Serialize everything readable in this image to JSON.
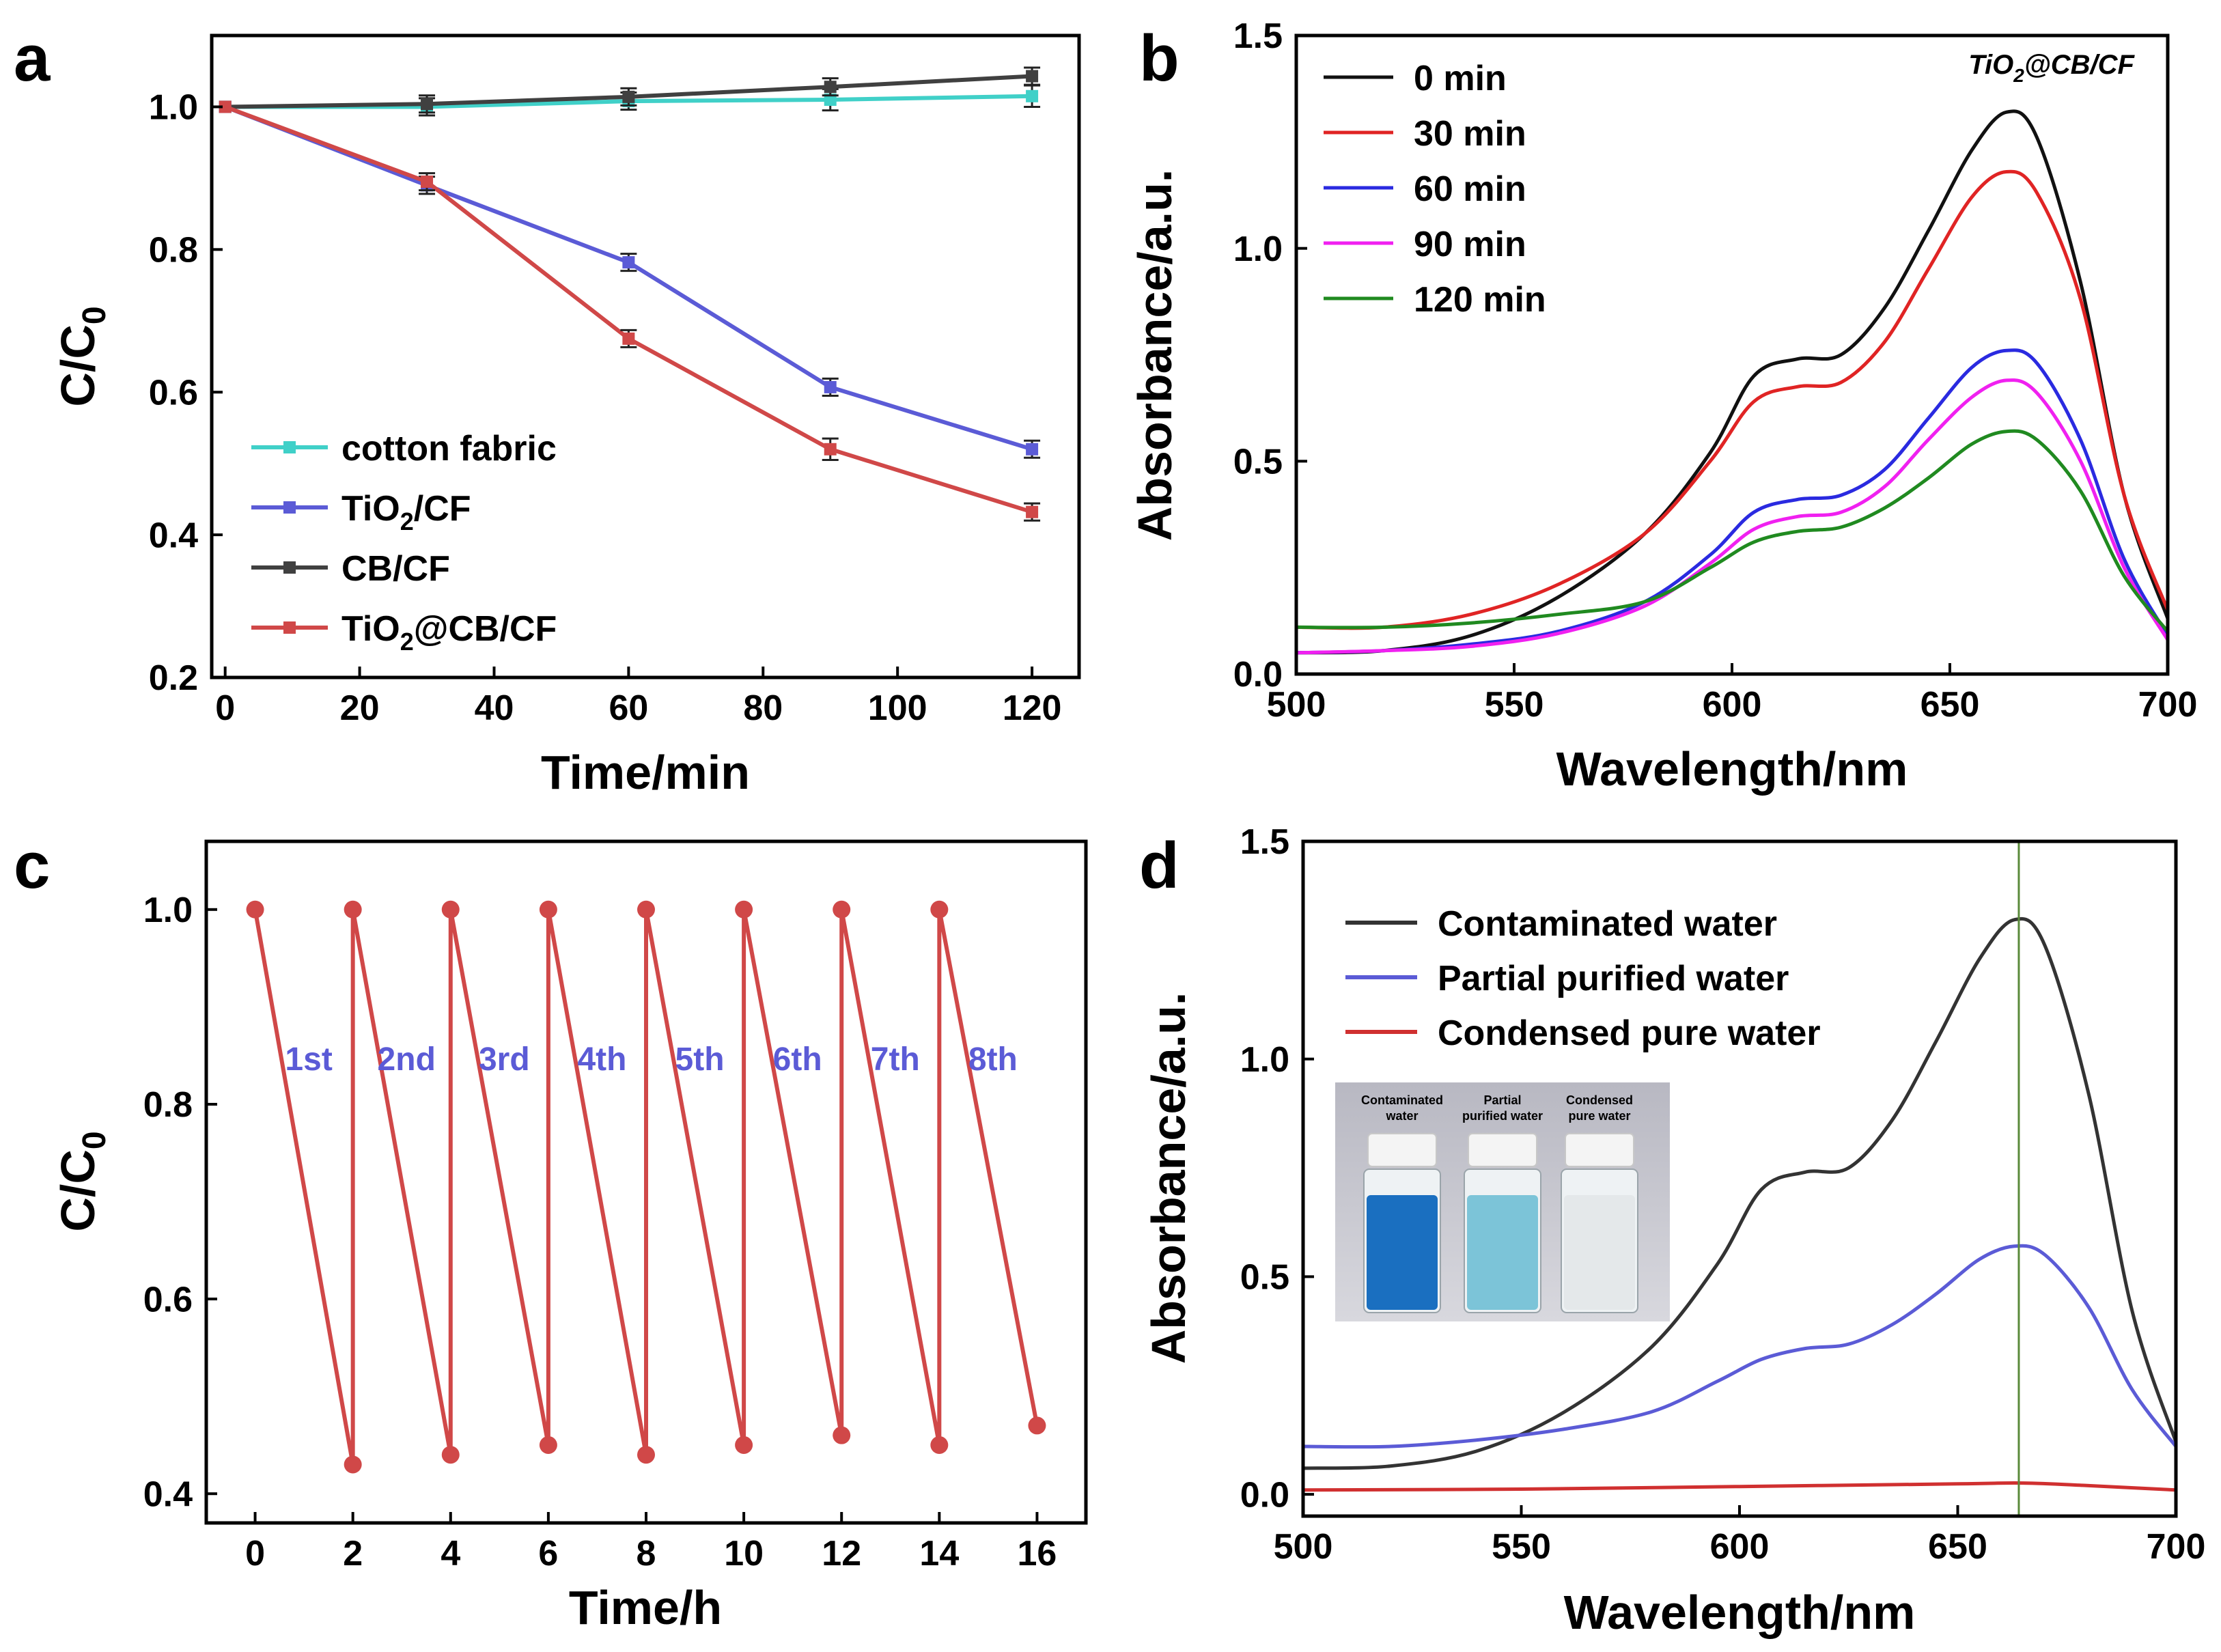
{
  "chart_data": [
    {
      "panel": "a",
      "type": "line",
      "xlabel": "Time/min",
      "ylabel": "C/C0",
      "ylabel_main": "C/C",
      "ylabel_sub": "0",
      "xlim": [
        -2,
        127
      ],
      "ylim": [
        0.2,
        1.1
      ],
      "xticks": [
        0,
        20,
        40,
        60,
        80,
        100,
        120
      ],
      "xtick_labels": [
        "0",
        "20",
        "40",
        "60",
        "80",
        "100",
        "120"
      ],
      "yticks": [
        0.2,
        0.4,
        0.6,
        0.8,
        1.0
      ],
      "ytick_labels": [
        "0.2",
        "0.4",
        "0.6",
        "0.8",
        "1.0"
      ],
      "legend_position": "bottom-left",
      "series": [
        {
          "name": "cotton fabric",
          "label_main": "cotton fabric",
          "label_sub": "",
          "label_rest": "",
          "color": "#40d0c8",
          "x": [
            0,
            30,
            60,
            90,
            120
          ],
          "y": [
            1.0,
            1.0,
            1.008,
            1.01,
            1.015
          ],
          "err": [
            0,
            0.012,
            0.012,
            0.015,
            0.015
          ]
        },
        {
          "name": "TiO2/CF",
          "label_main": "TiO",
          "label_sub": "2",
          "label_rest": "/CF",
          "color": "#5b5bd6",
          "x": [
            0,
            30,
            60,
            90,
            120
          ],
          "y": [
            1.0,
            0.89,
            0.782,
            0.607,
            0.52
          ],
          "err": [
            0,
            0.012,
            0.012,
            0.012,
            0.012
          ]
        },
        {
          "name": "CB/CF",
          "label_main": "CB/CF",
          "label_sub": "",
          "label_rest": "",
          "color": "#404040",
          "x": [
            0,
            30,
            60,
            90,
            120
          ],
          "y": [
            1.0,
            1.004,
            1.014,
            1.028,
            1.043
          ],
          "err": [
            0,
            0.012,
            0.012,
            0.012,
            0.012
          ]
        },
        {
          "name": "TiO2@CB/CF",
          "label_main": "TiO",
          "label_sub": "2",
          "label_rest": "@CB/CF",
          "color": "#d04848",
          "x": [
            0,
            30,
            60,
            90,
            120
          ],
          "y": [
            1.0,
            0.895,
            0.675,
            0.52,
            0.432
          ],
          "err": [
            0,
            0.012,
            0.012,
            0.015,
            0.012
          ]
        }
      ]
    },
    {
      "panel": "b",
      "type": "line",
      "xlabel": "Wavelength/nm",
      "ylabel": "Absorbance/a.u.",
      "xlim": [
        500,
        700
      ],
      "ylim": [
        0.0,
        1.5
      ],
      "xticks": [
        500,
        550,
        600,
        650,
        700
      ],
      "xtick_labels": [
        "500",
        "550",
        "600",
        "650",
        "700"
      ],
      "yticks": [
        0.0,
        0.5,
        1.0,
        1.5
      ],
      "ytick_labels": [
        "0.0",
        "0.5",
        "1.0",
        "1.5"
      ],
      "annotation_main": "TiO",
      "annotation_sub": "2",
      "annotation_rest": "@CB/CF",
      "legend_position": "top-left",
      "series": [
        {
          "name": "0 min",
          "color": "#111111",
          "x": [
            500,
            520,
            540,
            560,
            580,
            595,
            605,
            615,
            625,
            635,
            645,
            655,
            663,
            670,
            680,
            690,
            700
          ],
          "y": [
            0.05,
            0.055,
            0.09,
            0.18,
            0.33,
            0.52,
            0.7,
            0.74,
            0.75,
            0.86,
            1.04,
            1.23,
            1.32,
            1.26,
            0.92,
            0.42,
            0.13
          ]
        },
        {
          "name": "30 min",
          "color": "#e02424",
          "x": [
            500,
            520,
            540,
            560,
            580,
            595,
            605,
            615,
            625,
            635,
            645,
            655,
            663,
            670,
            680,
            690,
            700
          ],
          "y": [
            0.11,
            0.11,
            0.14,
            0.21,
            0.33,
            0.5,
            0.64,
            0.675,
            0.685,
            0.78,
            0.95,
            1.12,
            1.18,
            1.13,
            0.88,
            0.42,
            0.15
          ]
        },
        {
          "name": "60 min",
          "color": "#2a2ae0",
          "x": [
            500,
            520,
            540,
            560,
            580,
            595,
            605,
            615,
            625,
            635,
            645,
            655,
            663,
            670,
            680,
            690,
            700
          ],
          "y": [
            0.05,
            0.055,
            0.07,
            0.1,
            0.17,
            0.28,
            0.38,
            0.41,
            0.42,
            0.48,
            0.6,
            0.72,
            0.76,
            0.73,
            0.55,
            0.27,
            0.09
          ]
        },
        {
          "name": "90 min",
          "color": "#f020f0",
          "x": [
            500,
            520,
            540,
            560,
            580,
            595,
            605,
            615,
            625,
            635,
            645,
            655,
            663,
            670,
            680,
            690,
            700
          ],
          "y": [
            0.05,
            0.055,
            0.065,
            0.095,
            0.16,
            0.26,
            0.34,
            0.37,
            0.38,
            0.44,
            0.55,
            0.65,
            0.69,
            0.66,
            0.5,
            0.25,
            0.08
          ]
        },
        {
          "name": "120 min",
          "color": "#208a20",
          "x": [
            500,
            520,
            540,
            560,
            580,
            595,
            605,
            615,
            625,
            635,
            645,
            655,
            663,
            670,
            680,
            690,
            700
          ],
          "y": [
            0.11,
            0.11,
            0.12,
            0.14,
            0.17,
            0.25,
            0.31,
            0.335,
            0.345,
            0.39,
            0.46,
            0.54,
            0.57,
            0.55,
            0.43,
            0.23,
            0.1
          ]
        }
      ]
    },
    {
      "panel": "c",
      "type": "line",
      "xlabel": "Time/h",
      "ylabel": "C/C0",
      "ylabel_main": "C/C",
      "ylabel_sub": "0",
      "xlim": [
        -1,
        17
      ],
      "ylim": [
        0.37,
        1.07
      ],
      "xticks": [
        0,
        2,
        4,
        6,
        8,
        10,
        12,
        14,
        16
      ],
      "xtick_labels": [
        "0",
        "2",
        "4",
        "6",
        "8",
        "10",
        "12",
        "14",
        "16"
      ],
      "yticks": [
        0.4,
        0.6,
        0.8,
        1.0
      ],
      "ytick_labels": [
        "0.4",
        "0.6",
        "0.8",
        "1.0"
      ],
      "color": "#d04848",
      "label_color": "#5b5bd6",
      "cycles": [
        {
          "label": "1st",
          "x_start": 0,
          "x_end": 2,
          "y_start": 1.0,
          "y_end": 0.43
        },
        {
          "label": "2nd",
          "x_start": 2,
          "x_end": 4,
          "y_start": 1.0,
          "y_end": 0.44
        },
        {
          "label": "3rd",
          "x_start": 4,
          "x_end": 6,
          "y_start": 1.0,
          "y_end": 0.45
        },
        {
          "label": "4th",
          "x_start": 6,
          "x_end": 8,
          "y_start": 1.0,
          "y_end": 0.44
        },
        {
          "label": "5th",
          "x_start": 8,
          "x_end": 10,
          "y_start": 1.0,
          "y_end": 0.45
        },
        {
          "label": "6th",
          "x_start": 10,
          "x_end": 12,
          "y_start": 1.0,
          "y_end": 0.46
        },
        {
          "label": "7th",
          "x_start": 12,
          "x_end": 14,
          "y_start": 1.0,
          "y_end": 0.45
        },
        {
          "label": "8th",
          "x_start": 14,
          "x_end": 16,
          "y_start": 1.0,
          "y_end": 0.47
        }
      ]
    },
    {
      "panel": "d",
      "type": "line",
      "xlabel": "Wavelength/nm",
      "ylabel": "Absorbance/a.u.",
      "xlim": [
        500,
        700
      ],
      "ylim": [
        -0.05,
        1.5
      ],
      "xticks": [
        500,
        550,
        600,
        650,
        700
      ],
      "xtick_labels": [
        "500",
        "550",
        "600",
        "650",
        "700"
      ],
      "yticks": [
        0.0,
        0.5,
        1.0,
        1.5
      ],
      "ytick_labels": [
        "0.0",
        "0.5",
        "1.0",
        "1.5"
      ],
      "reference_line_x": 664,
      "reference_line_color": "#5a8a3a",
      "legend_position": "top-left",
      "inset": {
        "labels": [
          [
            "Contaminated",
            "water"
          ],
          [
            "Partial",
            "purified water"
          ],
          [
            "Condensed",
            "pure water"
          ]
        ],
        "liquid_colors": [
          "#1a6fc0",
          "#7cc4d8",
          "#e4e8ea"
        ]
      },
      "series": [
        {
          "name": "Contaminated water",
          "color": "#333333",
          "x": [
            500,
            520,
            540,
            560,
            580,
            595,
            605,
            615,
            625,
            635,
            645,
            655,
            663,
            670,
            680,
            690,
            700
          ],
          "y": [
            0.06,
            0.065,
            0.1,
            0.19,
            0.34,
            0.53,
            0.7,
            0.74,
            0.75,
            0.86,
            1.04,
            1.23,
            1.32,
            1.26,
            0.92,
            0.42,
            0.12
          ]
        },
        {
          "name": "Partial purified water",
          "color": "#5b5bd6",
          "x": [
            500,
            520,
            540,
            560,
            580,
            595,
            605,
            615,
            625,
            635,
            645,
            655,
            663,
            670,
            680,
            690,
            700
          ],
          "y": [
            0.11,
            0.11,
            0.125,
            0.15,
            0.19,
            0.26,
            0.31,
            0.335,
            0.345,
            0.39,
            0.46,
            0.54,
            0.57,
            0.55,
            0.43,
            0.24,
            0.11
          ]
        },
        {
          "name": "Condensed pure water",
          "color": "#d03030",
          "x": [
            500,
            550,
            600,
            650,
            665,
            680,
            700
          ],
          "y": [
            0.01,
            0.012,
            0.018,
            0.024,
            0.026,
            0.02,
            0.01
          ]
        }
      ]
    }
  ],
  "panel_labels": [
    "a",
    "b",
    "c",
    "d"
  ]
}
